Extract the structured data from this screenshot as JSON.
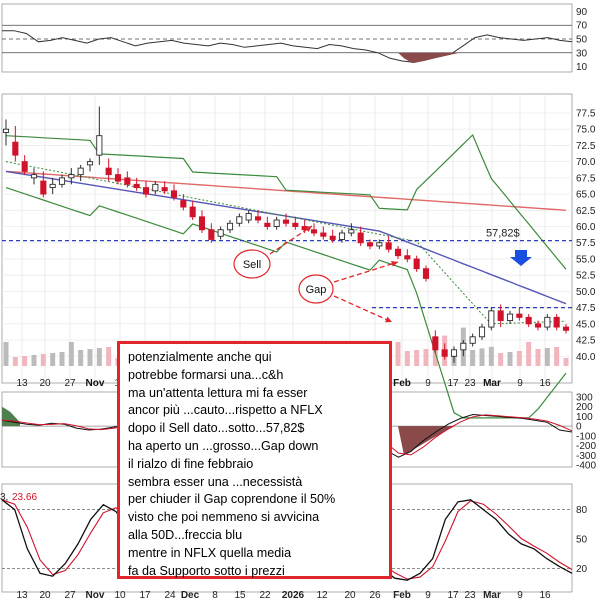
{
  "chart_data": {
    "type": "candlestick",
    "title": "",
    "price_axis": {
      "ticks": [
        "77.5",
        "75.0",
        "72.5",
        "70.0",
        "67.5",
        "65.0",
        "62.5",
        "60.0",
        "57.5",
        "55.0",
        "52.5",
        "50.0",
        "47.5",
        "45.0",
        "42.5",
        "40.0"
      ],
      "ylim": [
        37.5,
        80
      ]
    },
    "rsi_axis": {
      "ticks": [
        "90",
        "70",
        "50",
        "30",
        "10"
      ]
    },
    "macd_axis": {
      "ticks": [
        "300",
        "200",
        "100",
        "0",
        "-100",
        "-200",
        "-300",
        "-400"
      ]
    },
    "stoch_axis": {
      "ticks": [
        "80",
        "50",
        "20"
      ],
      "readout_value": "23.66"
    },
    "x_ticks": [
      "13",
      "20",
      "27",
      "Nov",
      "10",
      "17",
      "24",
      "Dec",
      "8",
      "15",
      "22",
      "2026",
      "12",
      "20",
      "26",
      "Feb",
      "9",
      "17",
      "23",
      "Mar",
      "9",
      "16"
    ],
    "x_ticks_bottom": [
      "13",
      "20",
      "27",
      "Nov",
      "10",
      "17",
      "24",
      "Dec",
      "8",
      "15",
      "22",
      "2026",
      "12",
      "20",
      "26",
      "Feb",
      "9",
      "17",
      "23",
      "Mar",
      "9",
      "16"
    ],
    "horizontal_levels": [
      {
        "value": 57.82,
        "label": "57,82$",
        "color": "#2b3db8"
      },
      {
        "value": 47.5,
        "label": "",
        "color": "#2b3db8"
      }
    ],
    "annotations": [
      {
        "text": "Sell",
        "type": "ellipse"
      },
      {
        "text": "Gap",
        "type": "ellipse"
      },
      {
        "text": "",
        "type": "blue-arrow-down"
      }
    ],
    "candles_approx": [
      [
        74.5,
        76.5,
        72.5,
        75.0
      ],
      [
        73.0,
        75.5,
        70.0,
        71.0
      ],
      [
        70.0,
        71.0,
        68.0,
        68.5
      ],
      [
        67.5,
        69.0,
        66.5,
        68.0
      ],
      [
        67.0,
        68.5,
        64.5,
        65.0
      ],
      [
        66.0,
        67.5,
        65.0,
        66.5
      ],
      [
        66.5,
        68.0,
        66.0,
        67.5
      ],
      [
        67.5,
        69.0,
        66.5,
        68.0
      ],
      [
        68.0,
        69.5,
        67.0,
        69.0
      ],
      [
        69.5,
        70.5,
        68.5,
        70.0
      ],
      [
        71.0,
        78.5,
        69.5,
        74.0
      ],
      [
        69.0,
        70.5,
        67.0,
        68.0
      ],
      [
        68.0,
        69.0,
        66.5,
        67.0
      ],
      [
        67.5,
        68.5,
        66.0,
        66.5
      ],
      [
        66.5,
        67.5,
        65.5,
        66.0
      ],
      [
        66.0,
        67.0,
        64.5,
        65.0
      ],
      [
        65.5,
        67.0,
        65.0,
        66.5
      ],
      [
        66.0,
        67.0,
        65.0,
        65.5
      ],
      [
        65.5,
        66.5,
        64.0,
        64.5
      ],
      [
        64.0,
        65.0,
        62.5,
        63.0
      ],
      [
        63.0,
        64.0,
        61.0,
        61.5
      ],
      [
        61.5,
        62.5,
        59.0,
        59.5
      ],
      [
        59.5,
        60.5,
        57.5,
        58.0
      ],
      [
        58.5,
        60.0,
        58.0,
        59.5
      ],
      [
        59.5,
        61.0,
        59.0,
        60.5
      ],
      [
        60.5,
        62.0,
        60.0,
        61.5
      ],
      [
        61.0,
        62.5,
        60.5,
        62.0
      ],
      [
        61.5,
        62.5,
        60.5,
        61.0
      ],
      [
        60.5,
        61.5,
        59.5,
        60.0
      ],
      [
        60.0,
        61.5,
        59.5,
        61.0
      ],
      [
        61.0,
        62.0,
        60.0,
        60.5
      ],
      [
        60.5,
        61.5,
        59.5,
        60.0
      ],
      [
        60.0,
        61.0,
        59.0,
        59.5
      ],
      [
        59.5,
        60.5,
        58.5,
        59.0
      ],
      [
        59.0,
        60.0,
        58.0,
        58.5
      ],
      [
        58.5,
        59.5,
        57.5,
        58.0
      ],
      [
        58.0,
        59.5,
        57.5,
        59.0
      ],
      [
        59.0,
        60.5,
        58.5,
        59.5
      ],
      [
        59.0,
        60.0,
        57.0,
        57.5
      ],
      [
        57.5,
        58.0,
        56.5,
        57.0
      ],
      [
        57.0,
        58.0,
        56.5,
        57.5
      ],
      [
        57.5,
        58.5,
        56.0,
        56.5
      ],
      [
        56.5,
        57.0,
        55.0,
        55.5
      ],
      [
        55.5,
        56.5,
        54.5,
        55.0
      ],
      [
        55.0,
        55.5,
        53.0,
        53.5
      ],
      [
        53.5,
        54.0,
        51.5,
        52.0
      ],
      [
        43.0,
        44.0,
        40.5,
        41.0
      ],
      [
        41.0,
        42.0,
        39.5,
        40.0
      ],
      [
        40.0,
        41.5,
        39.0,
        41.0
      ],
      [
        41.0,
        42.5,
        40.0,
        42.0
      ],
      [
        42.0,
        43.5,
        41.5,
        43.0
      ],
      [
        43.0,
        45.0,
        42.5,
        44.5
      ],
      [
        44.5,
        47.5,
        44.0,
        47.0
      ],
      [
        47.0,
        48.0,
        44.5,
        45.5
      ],
      [
        45.5,
        47.0,
        45.0,
        46.5
      ],
      [
        46.5,
        47.5,
        45.5,
        46.0
      ],
      [
        46.0,
        46.5,
        44.5,
        45.0
      ],
      [
        45.0,
        45.5,
        44.0,
        44.5
      ],
      [
        44.5,
        46.5,
        44.0,
        46.0
      ],
      [
        46.0,
        46.5,
        44.0,
        44.5
      ],
      [
        44.5,
        45.0,
        43.5,
        44.0
      ]
    ]
  },
  "note": {
    "lines": [
      "potenzialmente anche qui",
      "potrebbe formarsi una...c&h",
      "ma un'attenta lettura mi fa esser",
      "ancor più ...cauto...rispetto a NFLX",
      "dopo il Sell dato...sotto...57,82$",
      "ha aperto un ...grosso...Gap down",
      "il rialzo di fine febbraio",
      "sembra esser una ...necessistà",
      "per chiuder il Gap coprendone il 50%",
      "visto che poi nemmeno si avvicina",
      "alla 50D...freccia blu",
      "mentre in NFLX quella media",
      "fa da Supporto sotto i prezzi"
    ]
  },
  "colors": {
    "up": "#2c2c2c",
    "down": "#d0122a",
    "bb": "#3c8a3c",
    "ma200": "#e06a6a",
    "ma50": "#5656b8",
    "ma20": "#3c8a3c",
    "level": "#2b3db8",
    "note_border": "#e0262b"
  }
}
